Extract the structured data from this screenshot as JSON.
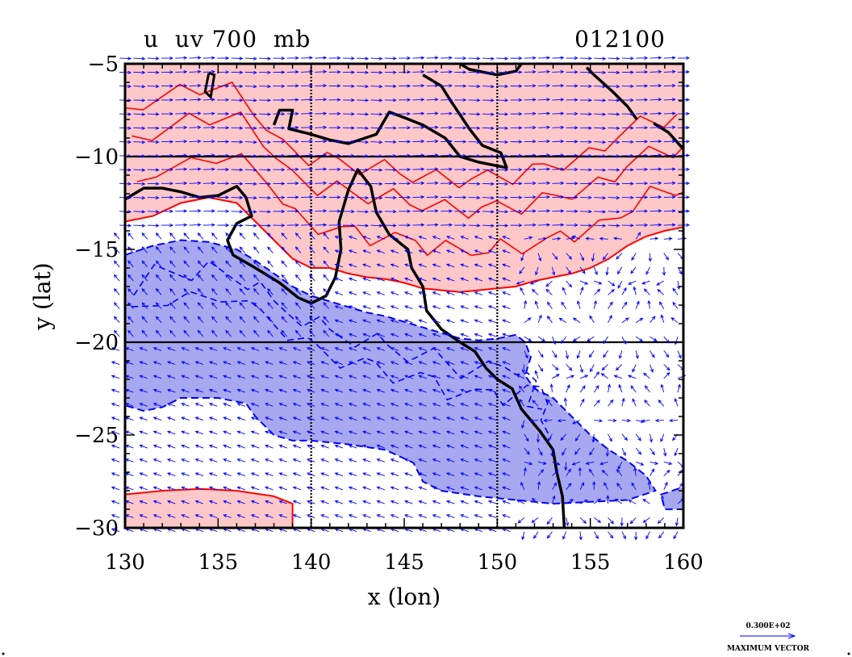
{
  "chart_data": {
    "type": "contour-vector",
    "title_left": "u  uv 700  mb",
    "title_right": "012100",
    "xlabel": "x (lon)",
    "ylabel": "y (lat)",
    "xlim": [
      130,
      160
    ],
    "ylim": [
      -30,
      -5
    ],
    "xticks": [
      130,
      135,
      140,
      145,
      150,
      155,
      160
    ],
    "yticks": [
      -5,
      -10,
      -15,
      -20,
      -25,
      -30
    ],
    "x_tick_labels": [
      "130",
      "135",
      "140",
      "145",
      "150",
      "155",
      "160"
    ],
    "y_tick_labels": [
      "−5",
      "−10",
      "−15",
      "−20",
      "−25",
      "−30"
    ],
    "grid_x": [
      140,
      150
    ],
    "grid_y": [
      -10,
      -20
    ],
    "positive_fill_color": "#ffc8c8",
    "positive_line_color": "#ff0000",
    "negative_fill_color": "#a8a8f0",
    "negative_line_color": "#0000ff",
    "coast_color": "#000000",
    "vector_color": "#0000ff",
    "legend": {
      "value_label": "0.300E+02",
      "caption": "MAXIMUM VECTOR"
    },
    "positive_region_top": [
      [
        130,
        -13.5
      ],
      [
        131.5,
        -13.2
      ],
      [
        133,
        -12.5
      ],
      [
        134.5,
        -12.2
      ],
      [
        136,
        -12.5
      ],
      [
        137,
        -13.5
      ],
      [
        138,
        -14.5
      ],
      [
        139,
        -15.5
      ],
      [
        140,
        -16
      ],
      [
        141,
        -16
      ],
      [
        142,
        -16.3
      ],
      [
        143,
        -16.5
      ],
      [
        144,
        -16.6
      ],
      [
        145,
        -16.8
      ],
      [
        146,
        -17.1
      ],
      [
        147,
        -17.2
      ],
      [
        148,
        -17.3
      ],
      [
        149,
        -17.2
      ],
      [
        150,
        -17.1
      ],
      [
        151,
        -17
      ],
      [
        152,
        -16.7
      ],
      [
        153,
        -16.5
      ],
      [
        154,
        -16.3
      ],
      [
        155,
        -16
      ],
      [
        156,
        -15.5
      ],
      [
        157,
        -14.8
      ],
      [
        158,
        -14.3
      ],
      [
        159,
        -14
      ],
      [
        160,
        -13.8
      ],
      [
        160,
        -5
      ],
      [
        130,
        -5
      ]
    ],
    "positive_region_bottom": [
      [
        130,
        -28.2
      ],
      [
        132,
        -28
      ],
      [
        134,
        -27.9
      ],
      [
        136,
        -28
      ],
      [
        138,
        -28.3
      ],
      [
        139,
        -28.7
      ],
      [
        139,
        -30
      ],
      [
        130,
        -30
      ]
    ],
    "negative_region_main": [
      [
        130,
        -15.3
      ],
      [
        131.5,
        -14.8
      ],
      [
        133,
        -14.5
      ],
      [
        134.5,
        -14.6
      ],
      [
        136,
        -15
      ],
      [
        137,
        -15.6
      ],
      [
        138,
        -16.3
      ],
      [
        139,
        -17
      ],
      [
        140,
        -17.5
      ],
      [
        141,
        -17.8
      ],
      [
        142,
        -18.1
      ],
      [
        143,
        -18.4
      ],
      [
        144,
        -18.6
      ],
      [
        145,
        -18.9
      ],
      [
        146,
        -19.2
      ],
      [
        147,
        -19.5
      ],
      [
        148,
        -19.8
      ],
      [
        149,
        -19.9
      ],
      [
        150,
        -19.8
      ],
      [
        151,
        -19.6
      ],
      [
        151.5,
        -20
      ],
      [
        151.8,
        -20.8
      ],
      [
        151.5,
        -21.8
      ],
      [
        152,
        -22.5
      ],
      [
        153,
        -23
      ],
      [
        154,
        -24
      ],
      [
        155,
        -25
      ],
      [
        156,
        -25.8
      ],
      [
        157,
        -26.4
      ],
      [
        158,
        -27.2
      ],
      [
        158.5,
        -28
      ],
      [
        157,
        -28.5
      ],
      [
        155,
        -28.6
      ],
      [
        153,
        -28.7
      ],
      [
        151,
        -28.5
      ],
      [
        149,
        -28.3
      ],
      [
        147,
        -28
      ],
      [
        146,
        -27.5
      ],
      [
        145.5,
        -26.5
      ],
      [
        144,
        -25.8
      ],
      [
        142,
        -25.5
      ],
      [
        140,
        -25.3
      ],
      [
        139,
        -25.3
      ],
      [
        138,
        -25
      ],
      [
        137,
        -24
      ],
      [
        136.5,
        -23.3
      ],
      [
        135,
        -23
      ],
      [
        133,
        -23
      ],
      [
        132,
        -23.5
      ],
      [
        131,
        -23.7
      ],
      [
        130,
        -23.4
      ]
    ],
    "negative_region_corner": [
      [
        158.8,
        -28.2
      ],
      [
        160,
        -27.8
      ],
      [
        160,
        -29
      ],
      [
        159,
        -29
      ]
    ],
    "coastline": [
      [
        130,
        -12.3
      ],
      [
        131,
        -11.7
      ],
      [
        132,
        -11.7
      ],
      [
        133,
        -11.9
      ],
      [
        134,
        -12.2
      ],
      [
        135,
        -12.1
      ],
      [
        136,
        -11.6
      ],
      [
        136.5,
        -12.2
      ],
      [
        136.8,
        -13.2
      ],
      [
        136,
        -13.6
      ],
      [
        135.5,
        -14.5
      ],
      [
        135.8,
        -15.3
      ],
      [
        137,
        -16
      ],
      [
        138.3,
        -16.8
      ],
      [
        139.3,
        -17.6
      ],
      [
        140,
        -17.9
      ],
      [
        140.8,
        -17.5
      ],
      [
        141.3,
        -16.5
      ],
      [
        141.6,
        -15
      ],
      [
        141.5,
        -13.5
      ],
      [
        142,
        -11.8
      ],
      [
        142.5,
        -10.7
      ],
      [
        143.2,
        -11.6
      ],
      [
        143.5,
        -13
      ],
      [
        144.2,
        -14.2
      ],
      [
        145.2,
        -15
      ],
      [
        145.4,
        -16
      ],
      [
        146,
        -17
      ],
      [
        146.2,
        -18.3
      ],
      [
        147,
        -19.3
      ],
      [
        148,
        -20
      ],
      [
        148.8,
        -20.5
      ],
      [
        149.4,
        -21.4
      ],
      [
        150,
        -22
      ],
      [
        150.8,
        -22.5
      ],
      [
        151.3,
        -23.6
      ],
      [
        152.3,
        -24.8
      ],
      [
        153,
        -25.8
      ],
      [
        153.2,
        -27
      ],
      [
        153.5,
        -28.3
      ],
      [
        153.6,
        -30
      ]
    ],
    "ng_coast": [
      [
        138,
        -8.3
      ],
      [
        138.3,
        -7.5
      ],
      [
        139,
        -7.5
      ],
      [
        138.8,
        -8.5
      ],
      [
        140,
        -8.8
      ],
      [
        141,
        -9.1
      ],
      [
        142,
        -9.3
      ],
      [
        143.5,
        -8.8
      ],
      [
        144.2,
        -7.6
      ],
      [
        145,
        -7.9
      ],
      [
        146,
        -8.3
      ],
      [
        147.2,
        -9
      ],
      [
        148,
        -10
      ],
      [
        149,
        -10.3
      ],
      [
        150.5,
        -10.6
      ],
      [
        150.2,
        -9.8
      ],
      [
        149.2,
        -9.4
      ],
      [
        148.5,
        -8.5
      ],
      [
        147.5,
        -7
      ],
      [
        147,
        -6.2
      ],
      [
        146,
        -5.6
      ]
    ],
    "ng_north": [
      [
        148,
        -5
      ],
      [
        148.5,
        -5.3
      ],
      [
        150,
        -5.6
      ],
      [
        151,
        -5.4
      ],
      [
        151.3,
        -5
      ]
    ],
    "bismarck": [
      [
        154.8,
        -5.2
      ],
      [
        155.2,
        -5.6
      ],
      [
        156.2,
        -6.5
      ],
      [
        157,
        -7.3
      ],
      [
        157.5,
        -8
      ]
    ],
    "solomons": [
      [
        158.4,
        -8.2
      ],
      [
        159.2,
        -8.7
      ],
      [
        160,
        -9.6
      ]
    ],
    "islands": [
      [
        [
          134.5,
          -5.5
        ],
        [
          134.8,
          -5.6
        ],
        [
          134.6,
          -6.8
        ],
        [
          134.3,
          -6.5
        ],
        [
          134.5,
          -5.5
        ]
      ]
    ]
  }
}
